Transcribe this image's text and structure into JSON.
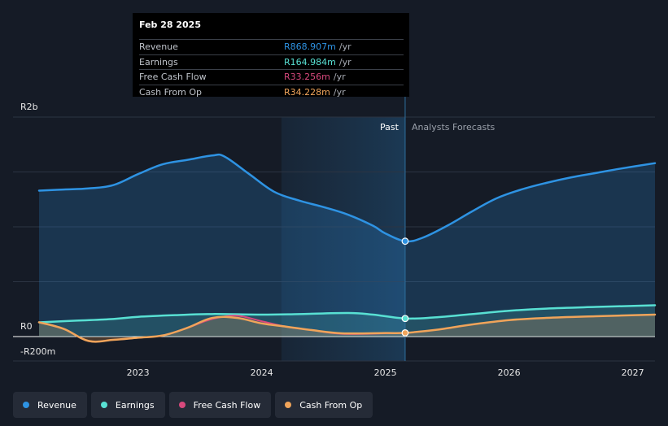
{
  "colors": {
    "revenue": "#2e93e3",
    "earnings": "#58e0d3",
    "free_cash_flow": "#d8497d",
    "cash_from_op": "#f0a45a"
  },
  "tooltip": {
    "date": "Feb 28 2025",
    "rows": [
      {
        "label": "Revenue",
        "value": "R868.907m",
        "unit": "/yr"
      },
      {
        "label": "Earnings",
        "value": "R164.984m",
        "unit": "/yr"
      },
      {
        "label": "Free Cash Flow",
        "value": "R33.256m",
        "unit": "/yr"
      },
      {
        "label": "Cash From Op",
        "value": "R34.228m",
        "unit": "/yr"
      }
    ]
  },
  "legend": [
    {
      "label": "Revenue",
      "color": "#2e93e3"
    },
    {
      "label": "Earnings",
      "color": "#58e0d3"
    },
    {
      "label": "Free Cash Flow",
      "color": "#d8497d"
    },
    {
      "label": "Cash From Op",
      "color": "#f0a45a"
    }
  ],
  "chart_data": {
    "type": "area",
    "title": "",
    "xlabel": "",
    "ylabel": "",
    "y_tick_labels": [
      "R2b",
      "R0",
      "-R200m"
    ],
    "x_tick_labels": [
      "2023",
      "2024",
      "2025",
      "2026",
      "2027"
    ],
    "x_ticks": [
      2023,
      2024,
      2025,
      2026,
      2027
    ],
    "xlim": [
      2022.2,
      2027.18
    ],
    "ylim": [
      -200,
      2000
    ],
    "units": "R millions",
    "past_label": "Past",
    "forecast_label": "Analysts Forecasts",
    "divider_x": 2025.16,
    "past_region_start_x": 2024.16,
    "series": [
      {
        "name": "Revenue",
        "key": "revenue",
        "filled": true,
        "points": [
          [
            2022.2,
            1330
          ],
          [
            2022.4,
            1340
          ],
          [
            2022.6,
            1350
          ],
          [
            2022.8,
            1380
          ],
          [
            2023.0,
            1480
          ],
          [
            2023.2,
            1570
          ],
          [
            2023.4,
            1610
          ],
          [
            2023.6,
            1650
          ],
          [
            2023.7,
            1640
          ],
          [
            2023.9,
            1480
          ],
          [
            2024.1,
            1320
          ],
          [
            2024.3,
            1240
          ],
          [
            2024.5,
            1180
          ],
          [
            2024.7,
            1110
          ],
          [
            2024.9,
            1010
          ],
          [
            2025.0,
            940
          ],
          [
            2025.16,
            869
          ],
          [
            2025.3,
            900
          ],
          [
            2025.5,
            1010
          ],
          [
            2025.7,
            1140
          ],
          [
            2025.9,
            1260
          ],
          [
            2026.1,
            1340
          ],
          [
            2026.3,
            1400
          ],
          [
            2026.5,
            1450
          ],
          [
            2026.7,
            1490
          ],
          [
            2026.9,
            1530
          ],
          [
            2027.18,
            1580
          ]
        ]
      },
      {
        "name": "Earnings",
        "key": "earnings",
        "filled": true,
        "points": [
          [
            2022.2,
            130
          ],
          [
            2022.5,
            145
          ],
          [
            2022.8,
            160
          ],
          [
            2023.0,
            180
          ],
          [
            2023.3,
            195
          ],
          [
            2023.6,
            205
          ],
          [
            2024.0,
            200
          ],
          [
            2024.3,
            205
          ],
          [
            2024.7,
            215
          ],
          [
            2024.9,
            200
          ],
          [
            2025.16,
            165
          ],
          [
            2025.4,
            175
          ],
          [
            2025.7,
            205
          ],
          [
            2026.0,
            235
          ],
          [
            2026.3,
            255
          ],
          [
            2026.7,
            270
          ],
          [
            2027.18,
            285
          ]
        ]
      },
      {
        "name": "Free Cash Flow",
        "key": "free_cash_flow",
        "filled": false,
        "points": [
          [
            2022.2,
            130
          ],
          [
            2022.4,
            70
          ],
          [
            2022.6,
            -40
          ],
          [
            2022.8,
            -30
          ],
          [
            2023.0,
            -10
          ],
          [
            2023.2,
            10
          ],
          [
            2023.4,
            80
          ],
          [
            2023.6,
            160
          ],
          [
            2023.8,
            190
          ],
          [
            2024.0,
            140
          ],
          [
            2024.2,
            90
          ],
          [
            2024.4,
            60
          ],
          [
            2024.65,
            25
          ],
          [
            2025.0,
            30
          ],
          [
            2025.16,
            33
          ]
        ]
      },
      {
        "name": "Cash From Op",
        "key": "cash_from_op",
        "filled": true,
        "points": [
          [
            2022.2,
            130
          ],
          [
            2022.4,
            70
          ],
          [
            2022.6,
            -40
          ],
          [
            2022.8,
            -30
          ],
          [
            2023.0,
            -10
          ],
          [
            2023.2,
            10
          ],
          [
            2023.4,
            80
          ],
          [
            2023.6,
            170
          ],
          [
            2023.8,
            170
          ],
          [
            2024.0,
            120
          ],
          [
            2024.2,
            90
          ],
          [
            2024.4,
            60
          ],
          [
            2024.65,
            30
          ],
          [
            2025.0,
            32
          ],
          [
            2025.16,
            34
          ],
          [
            2025.4,
            60
          ],
          [
            2025.7,
            110
          ],
          [
            2026.0,
            150
          ],
          [
            2026.3,
            170
          ],
          [
            2026.7,
            185
          ],
          [
            2027.18,
            200
          ]
        ]
      }
    ]
  }
}
